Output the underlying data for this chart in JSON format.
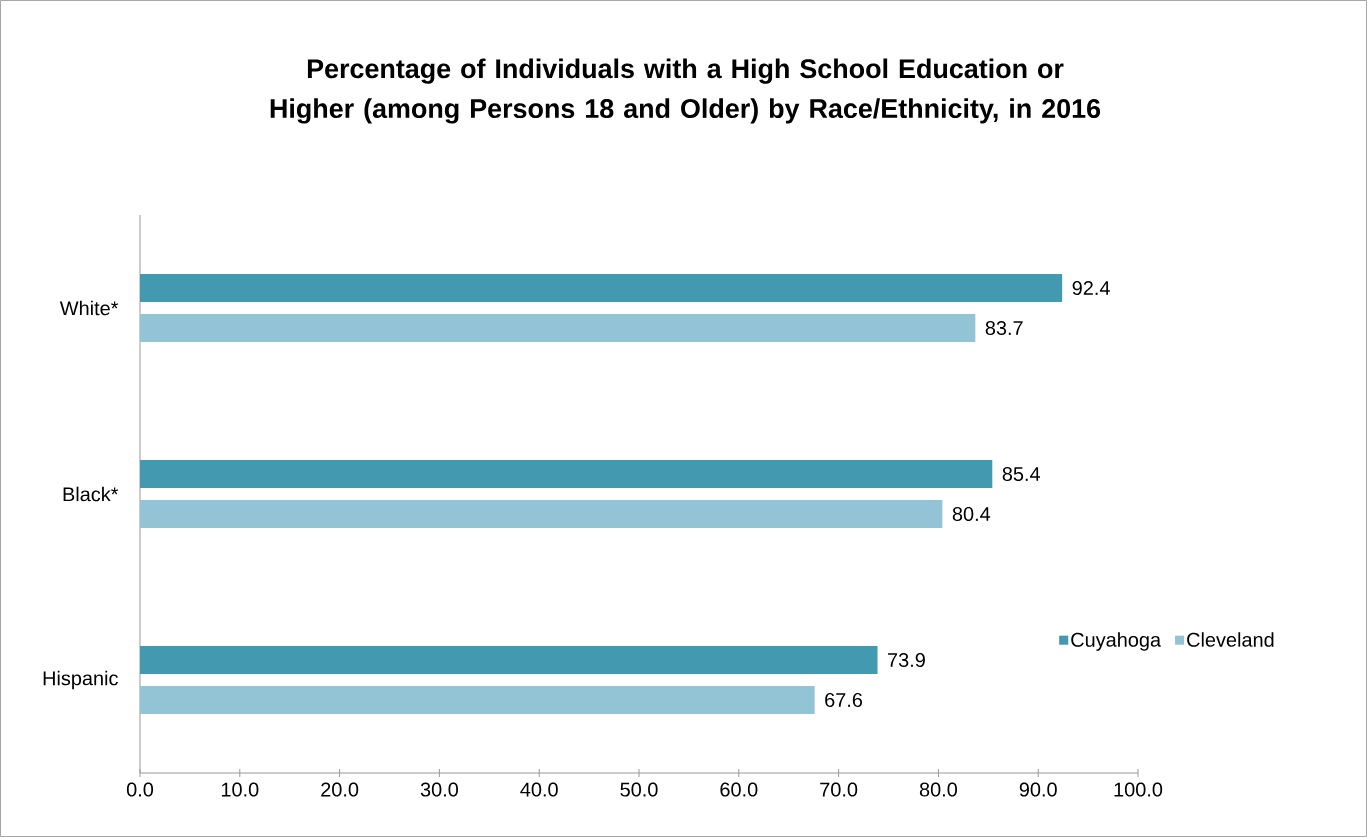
{
  "chart_data": {
    "type": "bar",
    "orientation": "horizontal",
    "title": "Percentage of Individuals with a High School Education or Higher (among Persons 18 and Older) by Race/Ethnicity, in 2016",
    "categories": [
      "White*",
      "Black*",
      "Hispanic"
    ],
    "series": [
      {
        "name": "Cuyahoga",
        "color": "#4399b0",
        "values": [
          92.4,
          85.4,
          73.9
        ]
      },
      {
        "name": "Cleveland",
        "color": "#93c4d5",
        "values": [
          83.7,
          80.4,
          67.6
        ]
      }
    ],
    "xlim": [
      0,
      100
    ],
    "xticks": [
      {
        "value": 0,
        "label": "0.0"
      },
      {
        "value": 10,
        "label": "10.0"
      },
      {
        "value": 20,
        "label": "20.0"
      },
      {
        "value": 30,
        "label": "30.0"
      },
      {
        "value": 40,
        "label": "40.0"
      },
      {
        "value": 50,
        "label": "50.0"
      },
      {
        "value": 60,
        "label": "60.0"
      },
      {
        "value": 70,
        "label": "70.0"
      },
      {
        "value": 80,
        "label": "80.0"
      },
      {
        "value": 90,
        "label": "90.0"
      },
      {
        "value": 100,
        "label": "100.0"
      }
    ],
    "data_labels": true,
    "legend": "right",
    "grid": false
  }
}
